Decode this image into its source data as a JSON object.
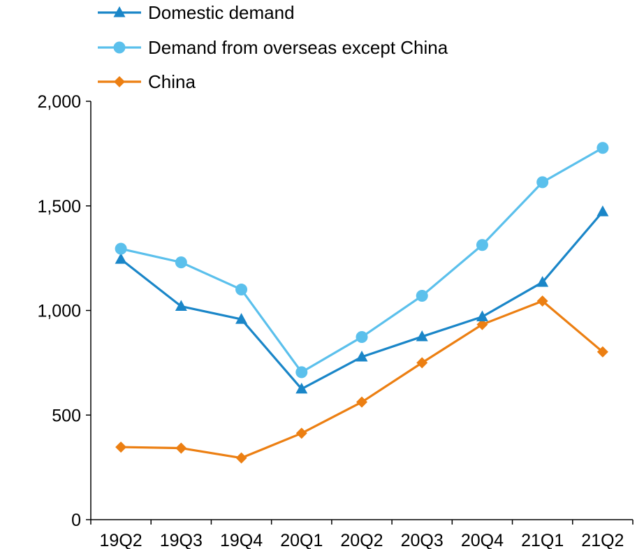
{
  "chart_data": {
    "type": "line",
    "categories": [
      "19Q2",
      "19Q3",
      "19Q4",
      "20Q1",
      "20Q2",
      "20Q3",
      "20Q4",
      "21Q1",
      "21Q2"
    ],
    "ylim": [
      0,
      2000
    ],
    "yticks": [
      0,
      500,
      1000,
      1500,
      2000
    ],
    "ytick_labels": [
      "0",
      "500",
      "1,000",
      "1,500",
      "2,000"
    ],
    "grid": false,
    "legend_position": "top-left",
    "series": [
      {
        "name": "Domestic demand",
        "color": "#1a86c8",
        "marker": "triangle",
        "values": [
          1245,
          1020,
          958,
          625,
          778,
          875,
          970,
          1135,
          1472
        ]
      },
      {
        "name": "Demand from overseas except China",
        "color": "#5bc0ec",
        "marker": "circle",
        "values": [
          1295,
          1230,
          1100,
          705,
          873,
          1070,
          1313,
          1613,
          1777
        ]
      },
      {
        "name": "China",
        "color": "#ec7f12",
        "marker": "diamond",
        "values": [
          347,
          342,
          295,
          413,
          562,
          750,
          933,
          1045,
          802
        ]
      }
    ]
  }
}
